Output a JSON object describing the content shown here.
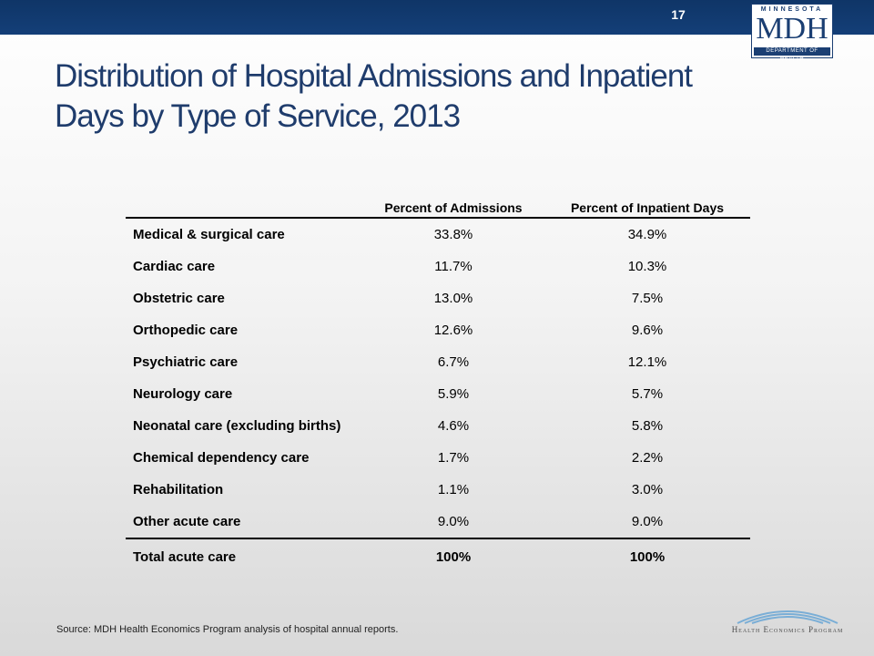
{
  "slide_number": "17",
  "logo": {
    "top_text": "MINNESOTA",
    "main_text": "MDH",
    "bottom_text": "DEPARTMENT OF HEALTH"
  },
  "title": "Distribution of Hospital Admissions and Inpatient Days by Type of Service, 2013",
  "table": {
    "headers": [
      "",
      "Percent of Admissions",
      "Percent of Inpatient Days"
    ],
    "rows": [
      [
        "Medical & surgical care",
        "33.8%",
        "34.9%"
      ],
      [
        "Cardiac care",
        "11.7%",
        "10.3%"
      ],
      [
        "Obstetric care",
        "13.0%",
        "7.5%"
      ],
      [
        "Orthopedic care",
        "12.6%",
        "9.6%"
      ],
      [
        "Psychiatric care",
        "6.7%",
        "12.1%"
      ],
      [
        "Neurology care",
        "5.9%",
        "5.7%"
      ],
      [
        "Neonatal care (excluding births)",
        "4.6%",
        "5.8%"
      ],
      [
        "Chemical dependency care",
        "1.7%",
        "2.2%"
      ],
      [
        "Rehabilitation",
        "1.1%",
        "3.0%"
      ],
      [
        "Other acute care",
        "9.0%",
        "9.0%"
      ]
    ],
    "total": [
      "Total acute care",
      "100%",
      "100%"
    ]
  },
  "source": "Source: MDH Health Economics Program analysis of hospital annual reports.",
  "footer_logo": "Health Economics Program",
  "colors": {
    "header_bar": "#143f78",
    "title": "#1f3c6c"
  }
}
